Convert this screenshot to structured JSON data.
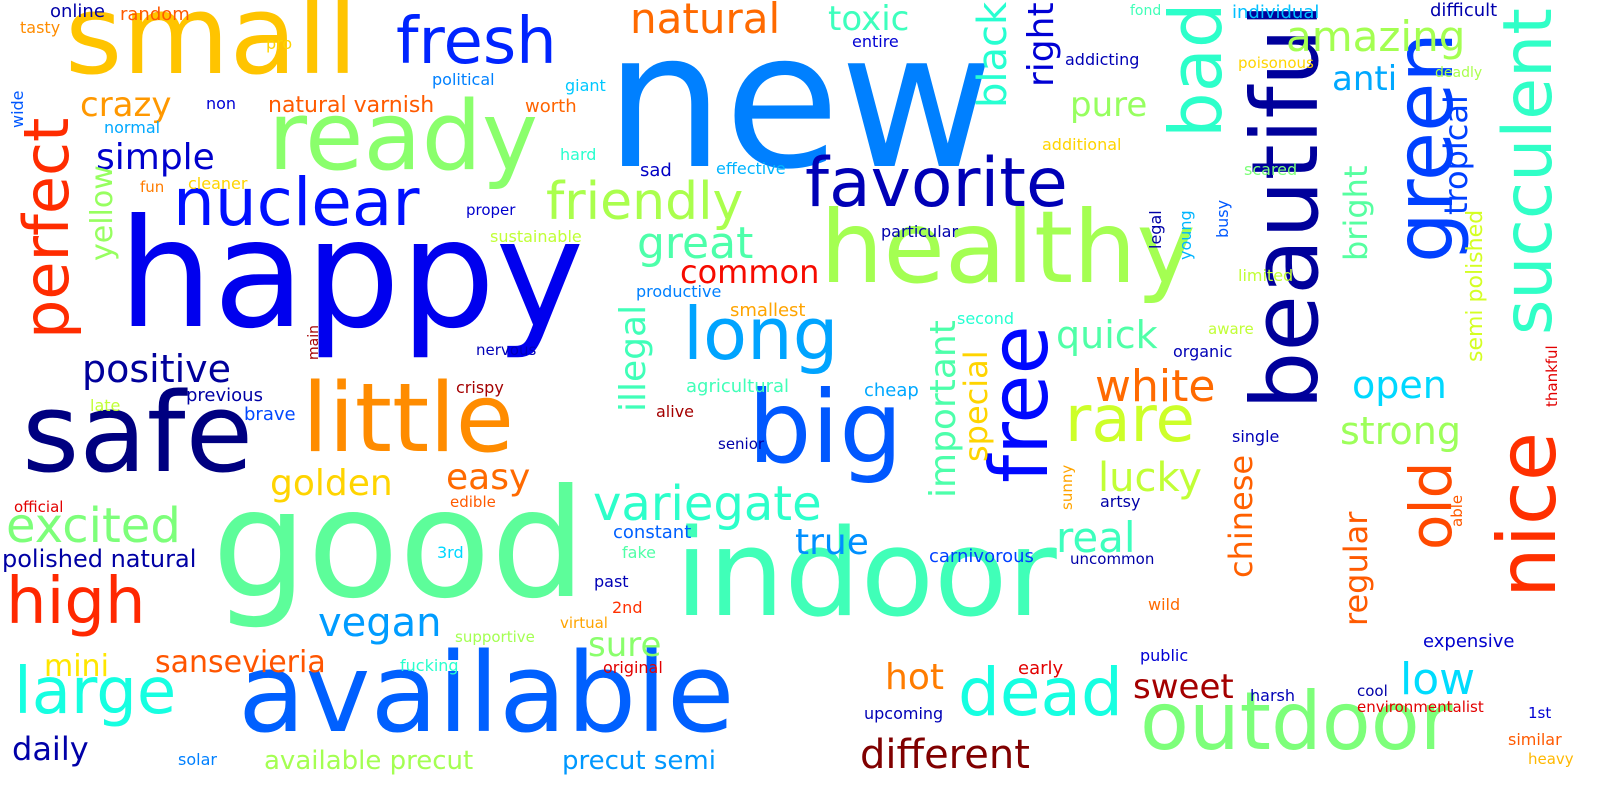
{
  "words": [
    {
      "text": "new",
      "color": "#0080ff",
      "vertical": false
    },
    {
      "text": "happy",
      "color": "#0000ee",
      "vertical": false
    },
    {
      "text": "good",
      "color": "#5dfd9a",
      "vertical": false
    },
    {
      "text": "indoor",
      "color": "#40ffb8",
      "vertical": false
    },
    {
      "text": "beautiful",
      "color": "#00009b",
      "vertical": true
    },
    {
      "text": "available",
      "color": "#0060ff",
      "vertical": false
    },
    {
      "text": "small",
      "color": "#ffc400",
      "vertical": false
    },
    {
      "text": "healthy",
      "color": "#a4ff52",
      "vertical": false
    },
    {
      "text": "safe",
      "color": "#000080",
      "vertical": false
    },
    {
      "text": "ready",
      "color": "#8aff6c",
      "vertical": false
    },
    {
      "text": "little",
      "color": "#ff8c00",
      "vertical": false
    },
    {
      "text": "big",
      "color": "#0058ff",
      "vertical": false
    },
    {
      "text": "free",
      "color": "#0008ff",
      "vertical": true
    },
    {
      "text": "outdoor",
      "color": "#7dff7a",
      "vertical": false
    },
    {
      "text": "green",
      "color": "#0040ff",
      "vertical": true
    },
    {
      "text": "nice",
      "color": "#ff3000",
      "vertical": true
    },
    {
      "text": "succulent",
      "color": "#30ffc7",
      "vertical": true
    },
    {
      "text": "perfect",
      "color": "#ff2c00",
      "vertical": true
    },
    {
      "text": "bad",
      "color": "#2cffca",
      "vertical": true
    },
    {
      "text": "nuclear",
      "color": "#0010ff",
      "vertical": false
    },
    {
      "text": "favorite",
      "color": "#0000b6",
      "vertical": false
    },
    {
      "text": "fresh",
      "color": "#0024ff",
      "vertical": false
    },
    {
      "text": "long",
      "color": "#00a4ff",
      "vertical": false
    },
    {
      "text": "high",
      "color": "#ff2800",
      "vertical": false
    },
    {
      "text": "large",
      "color": "#16ffe1",
      "vertical": false
    },
    {
      "text": "dead",
      "color": "#16ffe1",
      "vertical": false
    },
    {
      "text": "old",
      "color": "#ff4a00",
      "vertical": true
    },
    {
      "text": "rare",
      "color": "#cdff29",
      "vertical": false
    },
    {
      "text": "friendly",
      "color": "#aaff4d",
      "vertical": false
    },
    {
      "text": "variegate",
      "color": "#2cffca",
      "vertical": false
    },
    {
      "text": "excited",
      "color": "#7dff7a",
      "vertical": false
    },
    {
      "text": "natural",
      "color": "#ff6a00",
      "vertical": false
    },
    {
      "text": "amazing",
      "color": "#a4ff52",
      "vertical": false
    },
    {
      "text": "black",
      "color": "#26ffd1",
      "vertical": true
    },
    {
      "text": "important",
      "color": "#4dffaa",
      "vertical": true
    },
    {
      "text": "illegal",
      "color": "#40ffb8",
      "vertical": true
    },
    {
      "text": "great",
      "color": "#4dffaa",
      "vertical": false
    },
    {
      "text": "different",
      "color": "#800000",
      "vertical": false
    },
    {
      "text": "white",
      "color": "#ff6a00",
      "vertical": false
    },
    {
      "text": "strong",
      "color": "#9dff5a",
      "vertical": false
    },
    {
      "text": "open",
      "color": "#00d8ff",
      "vertical": false
    },
    {
      "text": "low",
      "color": "#00dcfe",
      "vertical": false
    },
    {
      "text": "positive",
      "color": "#00009b",
      "vertical": false
    },
    {
      "text": "crazy",
      "color": "#ff9800",
      "vertical": false
    },
    {
      "text": "simple",
      "color": "#0000cd",
      "vertical": false
    },
    {
      "text": "easy",
      "color": "#ff6a00",
      "vertical": false
    },
    {
      "text": "golden",
      "color": "#ffd400",
      "vertical": false
    },
    {
      "text": "vegan",
      "color": "#009cff",
      "vertical": false
    },
    {
      "text": "true",
      "color": "#0090ff",
      "vertical": false
    },
    {
      "text": "real",
      "color": "#3dffbd",
      "vertical": false
    },
    {
      "text": "quick",
      "color": "#50ffa7",
      "vertical": false
    },
    {
      "text": "lucky",
      "color": "#c1ff36",
      "vertical": false
    },
    {
      "text": "pure",
      "color": "#97ff60",
      "vertical": false
    },
    {
      "text": "right",
      "color": "#0000d4",
      "vertical": true
    },
    {
      "text": "toxic",
      "color": "#3dffbd",
      "vertical": false
    },
    {
      "text": "anti",
      "color": "#00a8ff",
      "vertical": false
    },
    {
      "text": "tropical",
      "color": "#0040ff",
      "vertical": true
    },
    {
      "text": "bright",
      "color": "#56ffa0",
      "vertical": true
    },
    {
      "text": "chinese",
      "color": "#ff6000",
      "vertical": true
    },
    {
      "text": "regular",
      "color": "#ff5a00",
      "vertical": true
    },
    {
      "text": "sweet",
      "color": "#a40000",
      "vertical": false
    },
    {
      "text": "hot",
      "color": "#ff7c00",
      "vertical": false
    },
    {
      "text": "common",
      "color": "#f60b00",
      "vertical": false
    },
    {
      "text": "special",
      "color": "#ffd400",
      "vertical": true
    },
    {
      "text": "yellow",
      "color": "#97ff60",
      "vertical": true
    },
    {
      "text": "sansevieria",
      "color": "#ff5500",
      "vertical": false
    },
    {
      "text": "mini",
      "color": "#ffe600",
      "vertical": false
    },
    {
      "text": "daily",
      "color": "#0000a8",
      "vertical": false
    },
    {
      "text": "sure",
      "color": "#8aff6c",
      "vertical": false
    },
    {
      "text": "semi polished",
      "color": "#d4ff23",
      "vertical": true
    },
    {
      "text": "available precut",
      "color": "#a4ff52",
      "vertical": false
    },
    {
      "text": "precut semi",
      "color": "#0098ff",
      "vertical": false
    },
    {
      "text": "polished natural",
      "color": "#0000a4",
      "vertical": false
    },
    {
      "text": "natural varnish",
      "color": "#ff5a00",
      "vertical": false
    },
    {
      "text": "online",
      "color": "#0000a8",
      "vertical": false
    },
    {
      "text": "random",
      "color": "#ff5a00",
      "vertical": false
    },
    {
      "text": "tasty",
      "color": "#ff8c00",
      "vertical": false
    },
    {
      "text": "pro",
      "color": "#ffd400",
      "vertical": false
    },
    {
      "text": "political",
      "color": "#0080ff",
      "vertical": false
    },
    {
      "text": "giant",
      "color": "#00c8ff",
      "vertical": false
    },
    {
      "text": "entire",
      "color": "#0000d4",
      "vertical": false
    },
    {
      "text": "fond",
      "color": "#40ffb8",
      "vertical": false
    },
    {
      "text": "individual",
      "color": "#00c0ff",
      "vertical": false
    },
    {
      "text": "difficult",
      "color": "#0000ad",
      "vertical": false
    },
    {
      "text": "addicting",
      "color": "#0000b6",
      "vertical": false
    },
    {
      "text": "poisonous",
      "color": "#ffd400",
      "vertical": false
    },
    {
      "text": "deadly",
      "color": "#aaff4d",
      "vertical": false
    },
    {
      "text": "wide",
      "color": "#0058ff",
      "vertical": true
    },
    {
      "text": "normal",
      "color": "#00a8ff",
      "vertical": false
    },
    {
      "text": "non",
      "color": "#0000d4",
      "vertical": false
    },
    {
      "text": "worth",
      "color": "#ff6400",
      "vertical": false
    },
    {
      "text": "hard",
      "color": "#29ffce",
      "vertical": false
    },
    {
      "text": "additional",
      "color": "#ffd400",
      "vertical": false
    },
    {
      "text": "sad",
      "color": "#0000c4",
      "vertical": false
    },
    {
      "text": "effective",
      "color": "#00b4ff",
      "vertical": false
    },
    {
      "text": "scared",
      "color": "#7dff7a",
      "vertical": false
    },
    {
      "text": "fun",
      "color": "#ff7c00",
      "vertical": false
    },
    {
      "text": "cleaner",
      "color": "#ffd400",
      "vertical": false
    },
    {
      "text": "proper",
      "color": "#0000cd",
      "vertical": false
    },
    {
      "text": "sustainable",
      "color": "#c1ff36",
      "vertical": false
    },
    {
      "text": "particular",
      "color": "#0000ad",
      "vertical": false
    },
    {
      "text": "legal",
      "color": "#0000a8",
      "vertical": true
    },
    {
      "text": "young",
      "color": "#00b4ff",
      "vertical": true
    },
    {
      "text": "busy",
      "color": "#0058ff",
      "vertical": true
    },
    {
      "text": "limited",
      "color": "#c1ff36",
      "vertical": false
    },
    {
      "text": "productive",
      "color": "#0080ff",
      "vertical": false
    },
    {
      "text": "smallest",
      "color": "#ffa400",
      "vertical": false
    },
    {
      "text": "second",
      "color": "#26ffd1",
      "vertical": false
    },
    {
      "text": "aware",
      "color": "#c1ff36",
      "vertical": false
    },
    {
      "text": "organic",
      "color": "#0000b6",
      "vertical": false
    },
    {
      "text": "main",
      "color": "#a40000",
      "vertical": true
    },
    {
      "text": "nervous",
      "color": "#0000b6",
      "vertical": false
    },
    {
      "text": "crispy",
      "color": "#a40000",
      "vertical": false
    },
    {
      "text": "agricultural",
      "color": "#40ffb8",
      "vertical": false
    },
    {
      "text": "cheap",
      "color": "#00a8ff",
      "vertical": false
    },
    {
      "text": "previous",
      "color": "#0000a4",
      "vertical": false
    },
    {
      "text": "late",
      "color": "#c1ff36",
      "vertical": false
    },
    {
      "text": "brave",
      "color": "#0048ff",
      "vertical": false
    },
    {
      "text": "alive",
      "color": "#a40000",
      "vertical": false
    },
    {
      "text": "senior",
      "color": "#0000a8",
      "vertical": false
    },
    {
      "text": "single",
      "color": "#0000b6",
      "vertical": false
    },
    {
      "text": "thankful",
      "color": "#e20000",
      "vertical": true
    },
    {
      "text": "official",
      "color": "#e20000",
      "vertical": false
    },
    {
      "text": "edible",
      "color": "#ff5a00",
      "vertical": false
    },
    {
      "text": "sunny",
      "color": "#ffa400",
      "vertical": true
    },
    {
      "text": "artsy",
      "color": "#0000a8",
      "vertical": false
    },
    {
      "text": "able",
      "color": "#ff5a00",
      "vertical": true
    },
    {
      "text": "constant",
      "color": "#0060ff",
      "vertical": false
    },
    {
      "text": "3rd",
      "color": "#00d8ff",
      "vertical": false
    },
    {
      "text": "fake",
      "color": "#50ffa7",
      "vertical": false
    },
    {
      "text": "carnivorous",
      "color": "#0040ff",
      "vertical": false
    },
    {
      "text": "uncommon",
      "color": "#0000a8",
      "vertical": false
    },
    {
      "text": "past",
      "color": "#0000b6",
      "vertical": false
    },
    {
      "text": "2nd",
      "color": "#ff3000",
      "vertical": false
    },
    {
      "text": "wild",
      "color": "#ff6a00",
      "vertical": false
    },
    {
      "text": "supportive",
      "color": "#a4ff52",
      "vertical": false
    },
    {
      "text": "virtual",
      "color": "#ffa400",
      "vertical": false
    },
    {
      "text": "expensive",
      "color": "#0000cd",
      "vertical": false
    },
    {
      "text": "fucking",
      "color": "#29ffce",
      "vertical": false
    },
    {
      "text": "original",
      "color": "#e20000",
      "vertical": false
    },
    {
      "text": "early",
      "color": "#e20000",
      "vertical": false
    },
    {
      "text": "public",
      "color": "#0000d4",
      "vertical": false
    },
    {
      "text": "harsh",
      "color": "#0000b6",
      "vertical": false
    },
    {
      "text": "cool",
      "color": "#0000a8",
      "vertical": false
    },
    {
      "text": "upcoming",
      "color": "#0000b6",
      "vertical": false
    },
    {
      "text": "environmentalist",
      "color": "#e20000",
      "vertical": false
    },
    {
      "text": "1st",
      "color": "#0000d4",
      "vertical": false
    },
    {
      "text": "similar",
      "color": "#ff5a00",
      "vertical": false
    },
    {
      "text": "solar",
      "color": "#0080ff",
      "vertical": false
    },
    {
      "text": "heavy",
      "color": "#ffb800",
      "vertical": false
    }
  ]
}
